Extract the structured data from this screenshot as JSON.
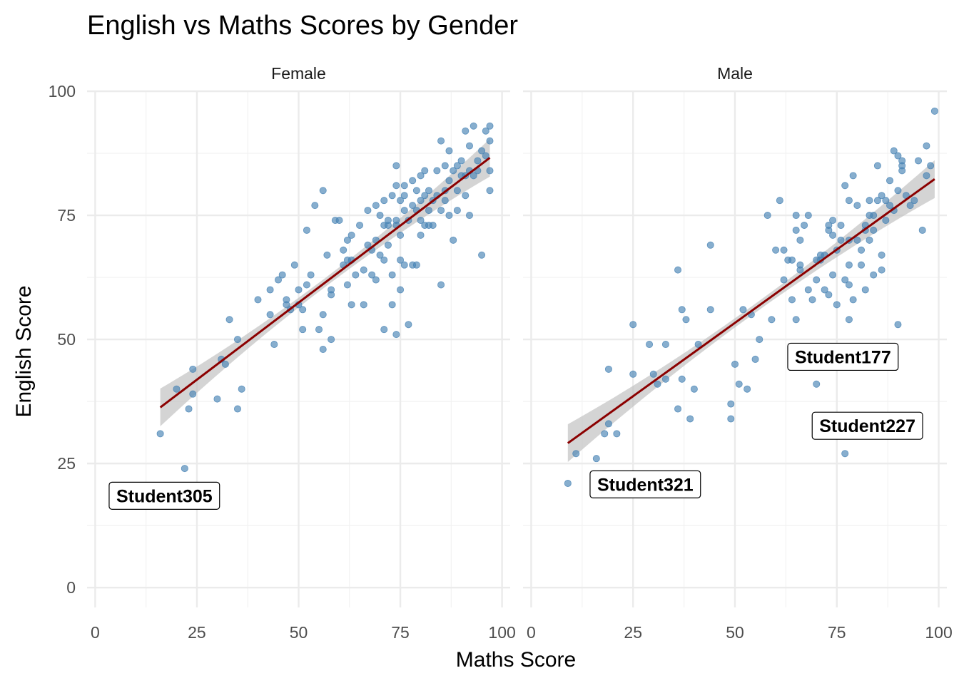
{
  "chart_data": {
    "type": "scatter",
    "title": "English vs Maths Scores by Gender",
    "xlabel": "Maths Score",
    "ylabel": "English Score",
    "xlim": [
      -2,
      102
    ],
    "ylim": [
      -4,
      100
    ],
    "x_ticks": [
      0,
      25,
      50,
      75,
      100
    ],
    "y_ticks": [
      0,
      25,
      50,
      75,
      100
    ],
    "grid": true,
    "point_color": "#4682b4",
    "trend_color": "#8b0000",
    "band_color": "#bdbdbd",
    "panels": [
      {
        "name": "Female",
        "trend": {
          "x_start": 16,
          "y_start": 36.3,
          "x_end": 97,
          "y_end": 86.6
        },
        "points": [
          [
            16,
            31
          ],
          [
            22,
            24
          ],
          [
            23,
            36
          ],
          [
            20,
            40
          ],
          [
            24,
            39
          ],
          [
            24,
            44
          ],
          [
            30,
            38
          ],
          [
            31,
            46
          ],
          [
            32,
            45
          ],
          [
            33,
            54
          ],
          [
            35,
            36
          ],
          [
            35,
            50
          ],
          [
            36,
            40
          ],
          [
            40,
            58
          ],
          [
            43,
            60
          ],
          [
            43,
            55
          ],
          [
            44,
            49
          ],
          [
            45,
            62
          ],
          [
            46,
            63
          ],
          [
            47,
            58
          ],
          [
            47,
            57
          ],
          [
            48,
            56
          ],
          [
            49,
            65
          ],
          [
            50,
            57
          ],
          [
            50,
            60
          ],
          [
            51,
            52
          ],
          [
            51,
            56
          ],
          [
            52,
            72
          ],
          [
            52,
            61
          ],
          [
            53,
            63
          ],
          [
            54,
            77
          ],
          [
            55,
            52
          ],
          [
            56,
            80
          ],
          [
            56,
            48
          ],
          [
            56,
            55
          ],
          [
            57,
            67
          ],
          [
            58,
            60
          ],
          [
            58,
            59
          ],
          [
            58,
            50
          ],
          [
            59,
            74
          ],
          [
            60,
            74
          ],
          [
            61,
            68
          ],
          [
            61,
            65
          ],
          [
            62,
            70
          ],
          [
            62,
            61
          ],
          [
            62,
            66
          ],
          [
            63,
            71
          ],
          [
            63,
            57
          ],
          [
            63,
            66
          ],
          [
            64,
            63
          ],
          [
            65,
            73
          ],
          [
            66,
            64
          ],
          [
            66,
            57
          ],
          [
            67,
            69
          ],
          [
            67,
            76
          ],
          [
            68,
            68
          ],
          [
            68,
            63
          ],
          [
            69,
            77
          ],
          [
            69,
            62
          ],
          [
            69,
            70
          ],
          [
            70,
            75
          ],
          [
            70,
            67
          ],
          [
            71,
            66
          ],
          [
            71,
            52
          ],
          [
            71,
            78
          ],
          [
            71,
            73
          ],
          [
            72,
            73
          ],
          [
            72,
            69
          ],
          [
            72,
            74
          ],
          [
            73,
            79
          ],
          [
            73,
            63
          ],
          [
            73,
            57
          ],
          [
            74,
            85
          ],
          [
            74,
            81
          ],
          [
            74,
            73
          ],
          [
            74,
            51
          ],
          [
            74,
            74
          ],
          [
            75,
            71
          ],
          [
            75,
            66
          ],
          [
            75,
            78
          ],
          [
            75,
            60
          ],
          [
            76,
            81
          ],
          [
            76,
            76
          ],
          [
            76,
            65
          ],
          [
            76,
            79
          ],
          [
            77,
            53
          ],
          [
            77,
            74
          ],
          [
            78,
            82
          ],
          [
            78,
            77
          ],
          [
            78,
            65
          ],
          [
            79,
            80
          ],
          [
            79,
            76
          ],
          [
            79,
            65
          ],
          [
            80,
            83
          ],
          [
            80,
            78
          ],
          [
            80,
            74
          ],
          [
            80,
            71
          ],
          [
            81,
            79
          ],
          [
            81,
            73
          ],
          [
            81,
            84
          ],
          [
            82,
            76
          ],
          [
            82,
            73
          ],
          [
            82,
            80
          ],
          [
            83,
            78
          ],
          [
            83,
            73
          ],
          [
            84,
            84
          ],
          [
            84,
            79
          ],
          [
            85,
            90
          ],
          [
            85,
            76
          ],
          [
            85,
            61
          ],
          [
            86,
            85
          ],
          [
            86,
            78
          ],
          [
            86,
            80
          ],
          [
            87,
            88
          ],
          [
            87,
            82
          ],
          [
            87,
            75
          ],
          [
            88,
            84
          ],
          [
            88,
            70
          ],
          [
            89,
            80
          ],
          [
            89,
            85
          ],
          [
            89,
            76
          ],
          [
            90,
            86
          ],
          [
            90,
            83
          ],
          [
            91,
            92
          ],
          [
            91,
            83
          ],
          [
            91,
            79
          ],
          [
            92,
            84
          ],
          [
            92,
            89
          ],
          [
            92,
            75
          ],
          [
            93,
            93
          ],
          [
            93,
            83
          ],
          [
            94,
            86
          ],
          [
            94,
            84
          ],
          [
            95,
            67
          ],
          [
            95,
            88
          ],
          [
            96,
            92
          ],
          [
            96,
            87
          ],
          [
            97,
            84
          ],
          [
            97,
            93
          ],
          [
            97,
            90
          ],
          [
            97,
            80
          ]
        ],
        "labels": [
          {
            "text": "Student305",
            "x": 17,
            "y": 18.5
          }
        ]
      },
      {
        "name": "Male",
        "trend": {
          "x_start": 9,
          "y_start": 29.1,
          "x_end": 99,
          "y_end": 82.3
        },
        "points": [
          [
            9,
            21
          ],
          [
            11,
            27
          ],
          [
            16,
            26
          ],
          [
            18,
            31
          ],
          [
            19,
            33
          ],
          [
            19,
            44
          ],
          [
            21,
            31
          ],
          [
            25,
            43
          ],
          [
            25,
            53
          ],
          [
            29,
            49
          ],
          [
            30,
            43
          ],
          [
            31,
            41
          ],
          [
            33,
            42
          ],
          [
            33,
            49
          ],
          [
            36,
            64
          ],
          [
            36,
            36
          ],
          [
            37,
            56
          ],
          [
            37,
            42
          ],
          [
            38,
            54
          ],
          [
            39,
            34
          ],
          [
            40,
            40
          ],
          [
            41,
            49
          ],
          [
            44,
            69
          ],
          [
            44,
            56
          ],
          [
            49,
            37
          ],
          [
            49,
            34
          ],
          [
            50,
            45
          ],
          [
            51,
            41
          ],
          [
            52,
            56
          ],
          [
            53,
            40
          ],
          [
            54,
            55
          ],
          [
            55,
            46
          ],
          [
            56,
            50
          ],
          [
            58,
            75
          ],
          [
            59,
            54
          ],
          [
            60,
            68
          ],
          [
            61,
            78
          ],
          [
            62,
            68
          ],
          [
            62,
            62
          ],
          [
            63,
            66
          ],
          [
            64,
            66
          ],
          [
            64,
            58
          ],
          [
            65,
            75
          ],
          [
            65,
            72
          ],
          [
            65,
            54
          ],
          [
            66,
            70
          ],
          [
            66,
            65
          ],
          [
            66,
            64
          ],
          [
            67,
            73
          ],
          [
            68,
            75
          ],
          [
            68,
            60
          ],
          [
            69,
            58
          ],
          [
            70,
            62
          ],
          [
            70,
            66
          ],
          [
            70,
            41
          ],
          [
            71,
            67
          ],
          [
            71,
            66
          ],
          [
            72,
            67
          ],
          [
            72,
            60
          ],
          [
            73,
            59
          ],
          [
            73,
            73
          ],
          [
            73,
            72
          ],
          [
            74,
            74
          ],
          [
            74,
            63
          ],
          [
            74,
            71
          ],
          [
            75,
            57
          ],
          [
            75,
            68
          ],
          [
            76,
            73
          ],
          [
            76,
            70
          ],
          [
            77,
            81
          ],
          [
            77,
            62
          ],
          [
            77,
            27
          ],
          [
            78,
            78
          ],
          [
            78,
            70
          ],
          [
            78,
            65
          ],
          [
            78,
            61
          ],
          [
            78,
            54
          ],
          [
            79,
            83
          ],
          [
            79,
            58
          ],
          [
            80,
            77
          ],
          [
            80,
            70
          ],
          [
            81,
            68
          ],
          [
            81,
            65
          ],
          [
            82,
            73
          ],
          [
            82,
            60
          ],
          [
            82,
            72
          ],
          [
            83,
            78
          ],
          [
            83,
            75
          ],
          [
            83,
            70
          ],
          [
            84,
            63
          ],
          [
            84,
            72
          ],
          [
            84,
            75
          ],
          [
            85,
            85
          ],
          [
            85,
            78
          ],
          [
            86,
            79
          ],
          [
            86,
            67
          ],
          [
            86,
            64
          ],
          [
            87,
            74
          ],
          [
            87,
            78
          ],
          [
            88,
            82
          ],
          [
            88,
            77
          ],
          [
            89,
            88
          ],
          [
            89,
            76
          ],
          [
            90,
            87
          ],
          [
            90,
            80
          ],
          [
            90,
            53
          ],
          [
            91,
            86
          ],
          [
            91,
            85
          ],
          [
            91,
            84
          ],
          [
            92,
            79
          ],
          [
            93,
            77
          ],
          [
            94,
            78
          ],
          [
            95,
            86
          ],
          [
            96,
            72
          ],
          [
            97,
            89
          ],
          [
            97,
            83
          ],
          [
            98,
            85
          ],
          [
            99,
            96
          ]
        ],
        "labels": [
          {
            "text": "Student177",
            "x": 76.5,
            "y": 46.5
          },
          {
            "text": "Student227",
            "x": 82.5,
            "y": 32.6
          },
          {
            "text": "Student321",
            "x": 28,
            "y": 20.8
          }
        ]
      }
    ]
  }
}
